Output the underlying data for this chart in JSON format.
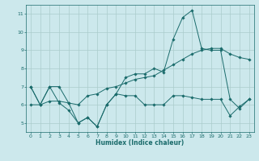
{
  "title": "",
  "xlabel": "Humidex (Indice chaleur)",
  "bg_color": "#cce8ec",
  "grid_color": "#aacccc",
  "line_color": "#1a6b6b",
  "xlim": [
    -0.5,
    23.5
  ],
  "ylim": [
    4.5,
    11.5
  ],
  "xticks": [
    0,
    1,
    2,
    3,
    4,
    5,
    6,
    7,
    8,
    9,
    10,
    11,
    12,
    13,
    14,
    15,
    16,
    17,
    18,
    19,
    20,
    21,
    22,
    23
  ],
  "yticks": [
    5,
    6,
    7,
    8,
    9,
    10,
    11
  ],
  "line1_x": [
    0,
    1,
    2,
    3,
    4,
    5,
    6,
    7,
    8,
    9,
    10,
    11,
    12,
    13,
    14,
    15,
    16,
    17,
    18,
    19,
    20,
    21,
    22,
    23
  ],
  "line1_y": [
    7.0,
    6.0,
    7.0,
    6.1,
    5.7,
    5.0,
    5.3,
    4.8,
    6.0,
    6.6,
    6.5,
    6.5,
    6.0,
    6.0,
    6.0,
    6.5,
    6.5,
    6.4,
    6.3,
    6.3,
    6.3,
    5.4,
    5.9,
    6.3
  ],
  "line2_x": [
    0,
    1,
    2,
    3,
    4,
    5,
    6,
    7,
    8,
    9,
    10,
    11,
    12,
    13,
    14,
    15,
    16,
    17,
    18,
    19,
    20,
    21,
    22,
    23
  ],
  "line2_y": [
    7.0,
    6.0,
    7.0,
    7.0,
    6.1,
    5.0,
    5.3,
    4.8,
    6.0,
    6.6,
    7.5,
    7.7,
    7.7,
    8.0,
    7.8,
    9.6,
    10.8,
    11.2,
    9.1,
    9.0,
    9.0,
    6.3,
    5.8,
    6.3
  ],
  "line3_x": [
    0,
    1,
    2,
    3,
    4,
    5,
    6,
    7,
    8,
    9,
    10,
    11,
    12,
    13,
    14,
    15,
    16,
    17,
    18,
    19,
    20,
    21,
    22,
    23
  ],
  "line3_y": [
    6.0,
    6.0,
    6.2,
    6.2,
    6.1,
    6.0,
    6.5,
    6.6,
    6.9,
    7.0,
    7.2,
    7.4,
    7.5,
    7.6,
    7.9,
    8.2,
    8.5,
    8.8,
    9.0,
    9.1,
    9.1,
    8.8,
    8.6,
    8.5
  ]
}
